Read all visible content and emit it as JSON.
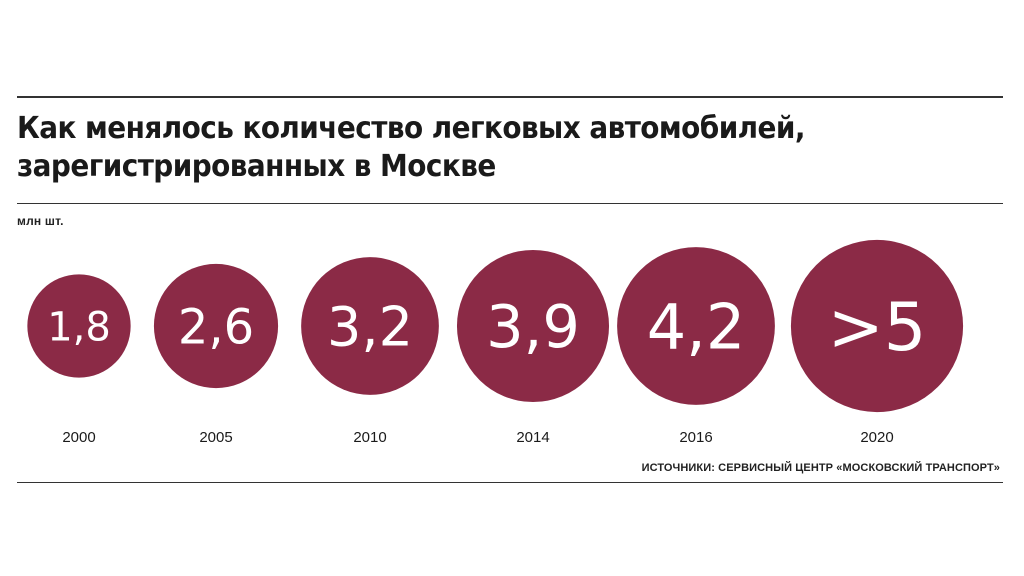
{
  "title_lines": [
    "Как менялось количество легковых автомобилей,",
    "зарегистрированных в Москве"
  ],
  "unit": "млн шт.",
  "source": "ИСТОЧНИКИ: СЕРВИСНЫЙ ЦЕНТР «МОСКОВСКИЙ ТРАНСПОРТ»",
  "colors": {
    "bubble": "#8b2a46",
    "text": "#1a1a1a"
  },
  "chart_data": {
    "type": "bubble",
    "categories": [
      "2000",
      "2005",
      "2010",
      "2014",
      "2016",
      "2020"
    ],
    "values": [
      1.8,
      2.6,
      3.2,
      3.9,
      4.2,
      5
    ],
    "labels": [
      "1,8",
      "2,6",
      "3,2",
      "3,9",
      "4,2",
      ">5"
    ],
    "ylabel": "млн шт."
  }
}
